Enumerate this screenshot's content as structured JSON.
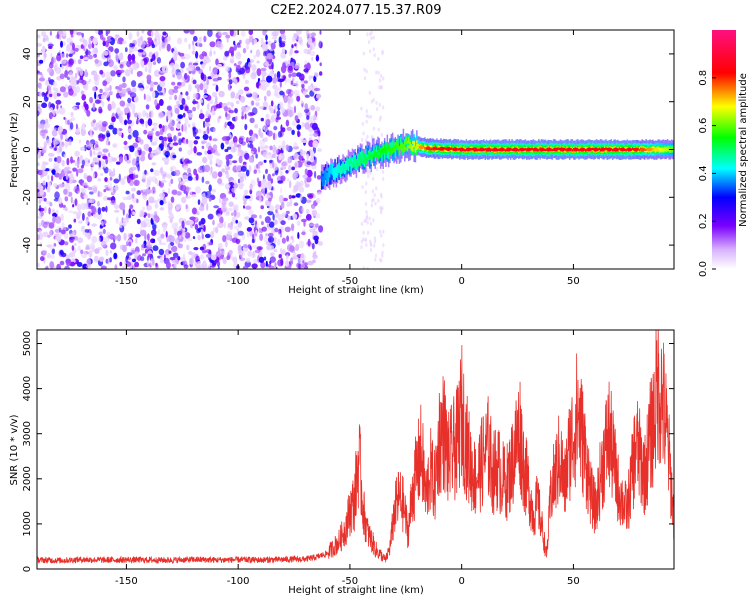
{
  "title": "C2E2.2024.077.15.37.R09",
  "chart_data": [
    {
      "type": "heatmap",
      "xlabel": "Height of straight line (km)",
      "ylabel": "Frequency (Hz)",
      "xlim": [
        -190,
        95
      ],
      "ylim": [
        -50,
        50
      ],
      "x_ticks": [
        -150,
        -100,
        -50,
        0,
        50
      ],
      "y_ticks": [
        -40,
        -20,
        0,
        20,
        40
      ],
      "colorbar": {
        "label": "Normalized spectral amplitude",
        "range": [
          0,
          1
        ],
        "ticks": [
          0.0,
          0.2,
          0.4,
          0.6,
          0.8
        ],
        "tick_labels": [
          "0.0",
          "0.2",
          "0.4",
          "0.6",
          "0.8"
        ],
        "colormap": [
          "#ffffff",
          "#d9b3ff",
          "#7a00ff",
          "#0000ff",
          "#00ffff",
          "#00ff00",
          "#ffff00",
          "#ff0000",
          "#ff1080"
        ]
      },
      "noise_region": {
        "x_range": [
          -190,
          -63
        ],
        "freq_range": [
          -50,
          50
        ],
        "amplitude": 0.15
      },
      "signal_track": [
        {
          "x": -63,
          "freq": -12,
          "amplitude": 0.35
        },
        {
          "x": -55,
          "freq": -8,
          "amplitude": 0.45
        },
        {
          "x": -45,
          "freq": -4,
          "amplitude": 0.5
        },
        {
          "x": -35,
          "freq": -1,
          "amplitude": 0.55
        },
        {
          "x": -25,
          "freq": 2,
          "amplitude": 0.6
        },
        {
          "x": -15,
          "freq": 0.5,
          "amplitude": 0.8
        },
        {
          "x": 0,
          "freq": 0,
          "amplitude": 0.85
        },
        {
          "x": 25,
          "freq": 0,
          "amplitude": 0.85
        },
        {
          "x": 50,
          "freq": 0,
          "amplitude": 0.85
        },
        {
          "x": 75,
          "freq": 0,
          "amplitude": 0.85
        },
        {
          "x": 95,
          "freq": 0,
          "amplitude": 0.6
        }
      ]
    },
    {
      "type": "line",
      "xlabel": "Height of straight line (km)",
      "ylabel": "SNR (10 * v/v)",
      "xlim": [
        -190,
        95
      ],
      "ylim": [
        0,
        5300
      ],
      "x_ticks": [
        -150,
        -100,
        -50,
        0,
        50
      ],
      "y_ticks": [
        0,
        1000,
        2000,
        3000,
        4000,
        5000
      ],
      "color": "#e8302a",
      "series": [
        {
          "x": [
            -190,
            -180,
            -170,
            -160,
            -150,
            -140,
            -130,
            -120,
            -110,
            -100,
            -90,
            -80,
            -70,
            -65,
            -60,
            -55,
            -52,
            -50,
            -48,
            -46,
            -44,
            -42,
            -40,
            -38,
            -36,
            -34,
            -32,
            -30,
            -28,
            -26,
            -24,
            -22,
            -20,
            -18,
            -16,
            -14,
            -12,
            -10,
            -8,
            -6,
            -4,
            -2,
            0,
            2,
            4,
            6,
            8,
            10,
            12,
            14,
            16,
            18,
            20,
            22,
            24,
            26,
            28,
            30,
            32,
            34,
            36,
            38,
            40,
            42,
            44,
            46,
            48,
            50,
            52,
            54,
            56,
            58,
            60,
            62,
            64,
            66,
            68,
            70,
            72,
            74,
            76,
            78,
            80,
            82,
            84,
            86,
            88,
            90,
            92,
            95
          ],
          "values": [
            200,
            190,
            210,
            200,
            205,
            200,
            195,
            210,
            200,
            205,
            200,
            210,
            220,
            260,
            350,
            600,
            900,
            1300,
            1500,
            2500,
            1300,
            800,
            600,
            400,
            300,
            200,
            500,
            1300,
            1600,
            1400,
            800,
            1700,
            2200,
            2600,
            1600,
            2200,
            1800,
            2900,
            3100,
            2400,
            2600,
            2800,
            3500,
            2800,
            2300,
            2000,
            2200,
            2500,
            2700,
            2100,
            2300,
            2000,
            1900,
            2200,
            2700,
            3100,
            2200,
            1800,
            1200,
            1500,
            900,
            300,
            1700,
            2100,
            2500,
            1800,
            2600,
            3000,
            3500,
            2900,
            2300,
            1600,
            1300,
            2000,
            2600,
            3000,
            2400,
            1800,
            1500,
            1300,
            2000,
            2800,
            2400,
            2100,
            2800,
            3300,
            4200,
            3700,
            2900,
            1100
          ]
        }
      ]
    }
  ]
}
